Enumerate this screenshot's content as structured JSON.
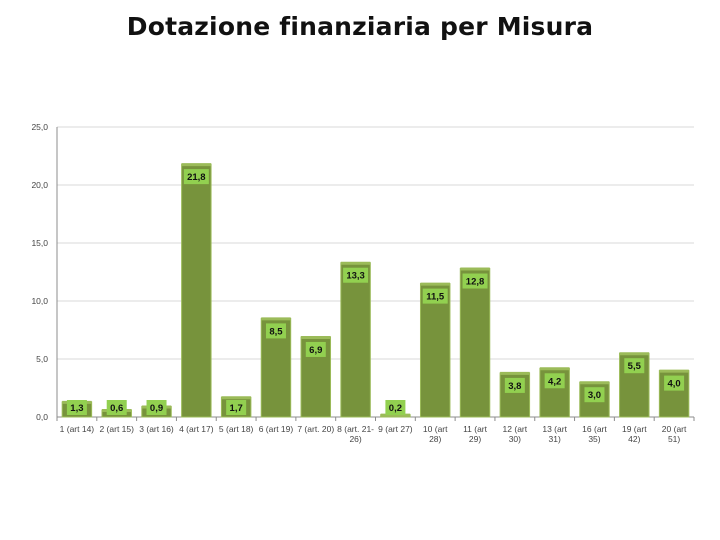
{
  "slide": {
    "title": "Dotazione finanziaria per Misura"
  },
  "chart_data": {
    "type": "bar",
    "title": "",
    "xlabel": "",
    "ylabel": "",
    "ylim": [
      0,
      25
    ],
    "yticks": [
      "0,0",
      "5,0",
      "10,0",
      "15,0",
      "20,0",
      "25,0"
    ],
    "grid": true,
    "legend": "none",
    "categories": [
      [
        "1 (art 14)"
      ],
      [
        "2 (art 15)"
      ],
      [
        "3 (art 16)"
      ],
      [
        "4 (art 17)"
      ],
      [
        "5 (art 18)"
      ],
      [
        "6 (art 19)"
      ],
      [
        "7 (art. 20)"
      ],
      [
        "8 (art. 21-",
        "26)"
      ],
      [
        "9 (art 27)"
      ],
      [
        "10 (art",
        "28)"
      ],
      [
        "11 (art",
        "29)"
      ],
      [
        "12 (art",
        "30)"
      ],
      [
        "13 (art",
        "31)"
      ],
      [
        "16 (art",
        "35)"
      ],
      [
        "19 (art",
        "42)"
      ],
      [
        "20 (art",
        "51)"
      ]
    ],
    "values": [
      1.3,
      0.6,
      0.9,
      21.8,
      1.7,
      8.5,
      6.9,
      13.3,
      0.2,
      11.5,
      12.8,
      3.8,
      4.2,
      3.0,
      5.5,
      4.0
    ],
    "labels": [
      "1,3",
      "0,6",
      "0,9",
      "21,8",
      "1,7",
      "8,5",
      "6,9",
      "13,3",
      "0,2",
      "11,5",
      "12,8",
      "3,8",
      "4,2",
      "3,0",
      "5,5",
      "4,0"
    ],
    "colors": {
      "bar": "#77933c",
      "bar_edge": "#9bbb59",
      "label_box": "#92d050",
      "grid": "#d9d9d9",
      "axis": "#8c8c8c"
    }
  }
}
